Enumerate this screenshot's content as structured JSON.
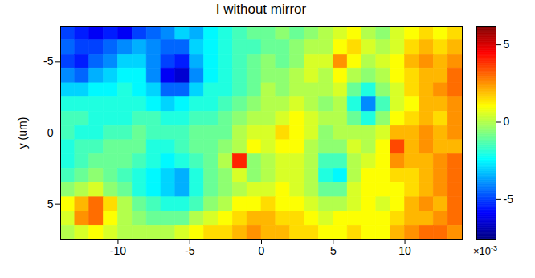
{
  "chart_data": {
    "type": "heatmap",
    "title": "I without mirror",
    "ylabel": "y (um)",
    "xlim": [
      -14,
      14
    ],
    "ylim": [
      7.5,
      -7.5
    ],
    "xticks": [
      -10,
      -5,
      0,
      5,
      10
    ],
    "yticks": [
      -5,
      0,
      5
    ],
    "xbins": [
      -14,
      -13,
      -12,
      -11,
      -10,
      -9,
      -8,
      -7,
      -6,
      -5,
      -4,
      -3,
      -2,
      -1,
      0,
      1,
      2,
      3,
      4,
      5,
      6,
      7,
      8,
      9,
      10,
      11,
      12,
      13,
      14
    ],
    "ybins": [
      -7.5,
      -6.5,
      -5.5,
      -4.5,
      -3.5,
      -2.5,
      -1.5,
      -0.5,
      0.5,
      1.5,
      2.5,
      3.5,
      4.5,
      5.5,
      6.5,
      7.5
    ],
    "cells": [
      [
        -5,
        -5.5,
        -6,
        -5.5,
        -6,
        -5,
        -4.5,
        -4,
        -3,
        -3.5,
        -2.5,
        -2,
        -1.5,
        -1,
        -1,
        -0.5,
        -1,
        -0.5,
        0,
        0.5,
        1,
        0,
        -0.5,
        0.5,
        1,
        1.5,
        1,
        1.5
      ],
      [
        -4.5,
        -5,
        -5,
        -4.5,
        -4,
        -3.5,
        -4,
        -4.5,
        -4.5,
        -3,
        -2.5,
        -2,
        -1.5,
        -1.5,
        -1,
        -1,
        -0.5,
        0,
        0,
        1,
        1.5,
        0.5,
        0,
        0.5,
        1.5,
        2,
        1.5,
        2
      ],
      [
        -5,
        -5.5,
        -4.5,
        -4,
        -3,
        -3,
        -4,
        -5,
        -5.5,
        -3.5,
        -2.5,
        -2,
        -1.5,
        -1,
        -0.5,
        -1,
        -0.5,
        0.5,
        0.5,
        2.5,
        1,
        0,
        0.5,
        1,
        2,
        2.5,
        2,
        2.5
      ],
      [
        -4,
        -4.5,
        -3.5,
        -3,
        -2.5,
        -2.5,
        -4,
        -6,
        -6.5,
        -4,
        -2.5,
        -2,
        -1.5,
        -1,
        -0.5,
        -0.5,
        0,
        0.5,
        0,
        1,
        0,
        -0.5,
        0,
        1,
        1.5,
        2,
        2,
        3
      ],
      [
        -3,
        -3,
        -2.5,
        -2.5,
        -2,
        -2.5,
        -3,
        -4.5,
        -4.5,
        -3,
        -2,
        -2,
        -1.5,
        -1,
        0,
        -0.5,
        0,
        0,
        0,
        0.5,
        -1,
        -2,
        -0.5,
        0.5,
        1.5,
        2,
        2.5,
        3
      ],
      [
        -2,
        -2,
        -2,
        -2,
        -2,
        -2,
        -2.5,
        -3,
        -2.5,
        -2,
        -2,
        -1.5,
        -1,
        -0.5,
        0,
        0,
        0.5,
        0,
        -0.5,
        0,
        -2,
        -4,
        -1.5,
        0.5,
        1,
        2,
        2,
        2.5
      ],
      [
        -1.5,
        -1.5,
        -2,
        -2,
        -2,
        -1.5,
        -1.5,
        -2,
        -2,
        -1.5,
        -1.5,
        -1,
        -0.5,
        0,
        0,
        0.5,
        1,
        0.5,
        0,
        0,
        -1,
        -2,
        -0.5,
        1,
        1.5,
        2,
        1.5,
        2.5
      ],
      [
        -1.5,
        -2,
        -2,
        -1.5,
        -1.5,
        -1,
        -1.5,
        -1.5,
        -1.5,
        -1,
        -1,
        -1,
        0,
        0.5,
        0.5,
        1.5,
        1,
        0.5,
        -0.5,
        0,
        0,
        0,
        0.5,
        2,
        2,
        2.5,
        2,
        2.5
      ],
      [
        -2,
        -1.5,
        -1.5,
        -1,
        -1,
        -1,
        -2,
        -2,
        -1.5,
        -1,
        -1,
        -0.5,
        0,
        1,
        0.5,
        1,
        1,
        0,
        -0.5,
        -0.5,
        0.5,
        0,
        1,
        3.5,
        2,
        2.5,
        2,
        2
      ],
      [
        -2,
        -1.5,
        -1,
        -1,
        -1,
        -1.5,
        -2,
        -2.5,
        -2,
        -1.5,
        -1,
        0,
        4,
        -0.5,
        0,
        0.5,
        0.5,
        0,
        -1.5,
        -1.5,
        0,
        0.5,
        1,
        2.5,
        2,
        2,
        2.5,
        3
      ],
      [
        -1.5,
        -1,
        -0.5,
        -1,
        -1.5,
        -2,
        -2.5,
        -3,
        -3.5,
        -2,
        -1,
        -0.5,
        0.5,
        -0.5,
        0,
        0.5,
        0.5,
        0,
        -2,
        -2.5,
        0,
        1,
        1,
        1.5,
        1.5,
        2,
        2.5,
        3
      ],
      [
        -0.5,
        0,
        0.5,
        -0.5,
        -1,
        -2,
        -2.5,
        -3,
        -3.5,
        -2,
        -1,
        -0.5,
        0,
        0.5,
        0.5,
        1,
        0.5,
        0,
        -1,
        -1,
        0.5,
        1,
        1,
        1,
        1.5,
        2,
        2.5,
        3
      ],
      [
        1,
        2,
        3,
        1.5,
        0,
        -1,
        -1.5,
        -2,
        -2,
        -1.5,
        -0.5,
        0,
        1,
        1,
        1.5,
        1,
        1,
        0.5,
        0,
        0,
        0.5,
        1,
        0.5,
        1,
        2,
        2.5,
        2,
        3
      ],
      [
        0.5,
        2.5,
        3,
        1,
        0,
        -0.5,
        -1,
        -1,
        -1,
        0,
        0.5,
        1,
        1.5,
        2,
        2,
        1.5,
        1.5,
        1,
        0.5,
        1,
        1,
        1,
        1,
        1.5,
        2,
        2,
        2.5,
        3
      ],
      [
        0,
        0.5,
        1,
        0.5,
        0,
        0,
        0,
        0,
        0.5,
        1,
        1.5,
        1.5,
        2,
        2.5,
        2,
        2,
        1.5,
        1.5,
        1,
        1,
        1.5,
        1,
        1,
        2,
        2.5,
        3,
        3,
        2.5
      ]
    ],
    "colorbar_range": [
      -7.6,
      6.2
    ],
    "colorbar_ticks": [
      -5,
      0,
      5
    ],
    "colorbar_multiplier": {
      "base": "×10",
      "exponent": "-3"
    }
  }
}
